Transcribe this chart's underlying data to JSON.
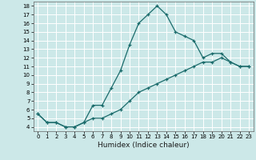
{
  "title": "",
  "xlabel": "Humidex (Indice chaleur)",
  "ylabel": "",
  "xlim": [
    -0.5,
    23.5
  ],
  "ylim": [
    3.5,
    18.5
  ],
  "yticks": [
    4,
    5,
    6,
    7,
    8,
    9,
    10,
    11,
    12,
    13,
    14,
    15,
    16,
    17,
    18
  ],
  "xticks": [
    0,
    1,
    2,
    3,
    4,
    5,
    6,
    7,
    8,
    9,
    10,
    11,
    12,
    13,
    14,
    15,
    16,
    17,
    18,
    19,
    20,
    21,
    22,
    23
  ],
  "bg_color": "#cce8e8",
  "grid_color": "#ffffff",
  "line_color": "#1a6b6b",
  "line1_x": [
    0,
    1,
    2,
    3,
    4,
    5,
    6,
    7,
    8,
    9,
    10,
    11,
    12,
    13,
    14,
    15,
    16,
    17,
    18,
    19,
    20,
    21,
    22,
    23
  ],
  "line1_y": [
    5.5,
    4.5,
    4.5,
    4.0,
    4.0,
    4.5,
    6.5,
    6.5,
    8.5,
    10.5,
    13.5,
    16.0,
    17.0,
    18.0,
    17.0,
    15.0,
    14.5,
    14.0,
    12.0,
    12.5,
    12.5,
    11.5,
    11.0,
    11.0
  ],
  "line2_x": [
    0,
    1,
    2,
    3,
    4,
    5,
    6,
    7,
    8,
    9,
    10,
    11,
    12,
    13,
    14,
    15,
    16,
    17,
    18,
    19,
    20,
    21,
    22,
    23
  ],
  "line2_y": [
    5.5,
    4.5,
    4.5,
    4.0,
    4.0,
    4.5,
    5.0,
    5.0,
    5.5,
    6.0,
    7.0,
    8.0,
    8.5,
    9.0,
    9.5,
    10.0,
    10.5,
    11.0,
    11.5,
    11.5,
    12.0,
    11.5,
    11.0,
    11.0
  ],
  "marker_size": 3.5,
  "line_width": 0.9,
  "tick_fontsize": 5.0,
  "xlabel_fontsize": 6.5,
  "spine_color": "#666666"
}
